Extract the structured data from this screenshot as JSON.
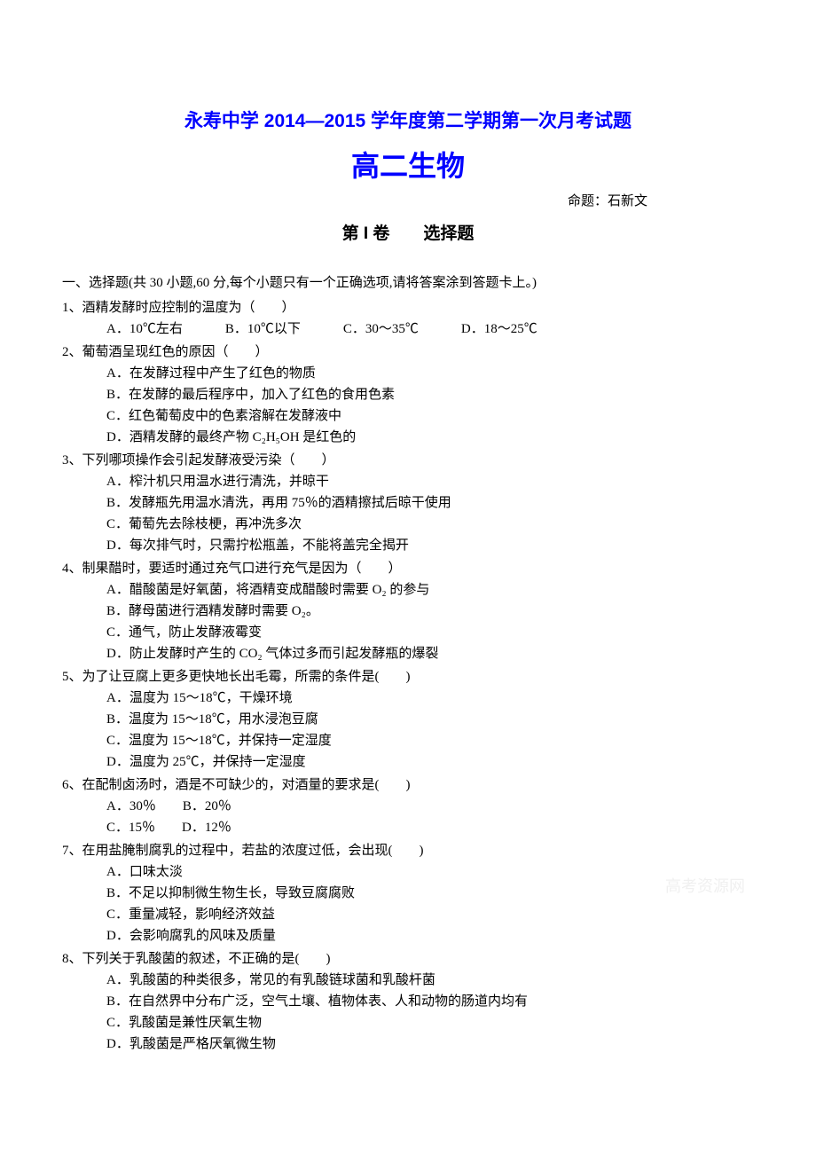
{
  "header": {
    "title_line_1": "永寿中学 2014—2015 学年度第二学期第一次月考试题",
    "title_line_2": "高二生物",
    "author": "命题：石新文",
    "section_title": "第 I 卷　　选择题"
  },
  "instruction": "一、选择题(共 30 小题,60 分,每个小题只有一个正确选项,请将答案涂到答题卡上。)",
  "questions": [
    {
      "num": "1、",
      "text": "酒精发酵时应控制的温度为（　　）",
      "options_inline": [
        "A．10℃左右",
        "B．10℃以下",
        "C．30～35℃",
        "D．18～25℃"
      ]
    },
    {
      "num": "2、",
      "text": "葡萄酒呈现红色的原因（　　）",
      "options": [
        "A．在发酵过程中产生了红色的物质",
        "B．在发酵的最后程序中，加入了红色的食用色素",
        "C．红色葡萄皮中的色素溶解在发酵液中",
        "D．酒精发酵的最终产物 C₂H₅OH 是红色的"
      ]
    },
    {
      "num": "3、",
      "text": "下列哪项操作会引起发酵液受污染（　　）",
      "options": [
        "A．榨汁机只用温水进行清洗，并晾干",
        "B．发酵瓶先用温水清洗，再用 75％的酒精擦拭后晾干使用",
        "C．葡萄先去除枝梗，再冲洗多次",
        "D．每次排气时，只需拧松瓶盖，不能将盖完全揭开"
      ]
    },
    {
      "num": "4、",
      "text": "制果醋时，要适时通过充气口进行充气是因为（　　）",
      "options": [
        "A．醋酸菌是好氧菌，将酒精变成醋酸时需要 O₂ 的参与",
        "B．酵母菌进行酒精发酵时需要 O₂。",
        "C．通气，防止发酵液霉变",
        "D．防止发酵时产生的 CO₂ 气体过多而引起发酵瓶的爆裂"
      ]
    },
    {
      "num": "5、",
      "text": "为了让豆腐上更多更快地长出毛霉，所需的条件是(　　)",
      "options": [
        "A．温度为 15～18℃，干燥环境",
        "B．温度为 15～18℃，用水浸泡豆腐",
        "C．温度为 15～18℃，并保持一定湿度",
        "D．温度为 25℃，并保持一定湿度"
      ]
    },
    {
      "num": "6、",
      "text": "在配制卤汤时，酒是不可缺少的，对酒量的要求是(　　)",
      "options_two": [
        [
          "A．30％",
          "B．20％"
        ],
        [
          "C．15％",
          "D．12％"
        ]
      ]
    },
    {
      "num": "7、",
      "text": "在用盐腌制腐乳的过程中，若盐的浓度过低，会出现(　　)",
      "options": [
        "A．口味太淡",
        "B．不足以抑制微生物生长，导致豆腐腐败",
        "C．重量减轻，影响经济效益",
        "D．会影响腐乳的风味及质量"
      ]
    },
    {
      "num": "8、",
      "text": "下列关于乳酸菌的叙述，不正确的是(　　)",
      "options": [
        "A．乳酸菌的种类很多，常见的有乳酸链球菌和乳酸杆菌",
        "B．在自然界中分布广泛，空气土壤、植物体表、人和动物的肠道内均有",
        "C．乳酸菌是兼性厌氧生物",
        "D．乳酸菌是严格厌氧微生物"
      ]
    }
  ],
  "watermark": "高考资源网"
}
